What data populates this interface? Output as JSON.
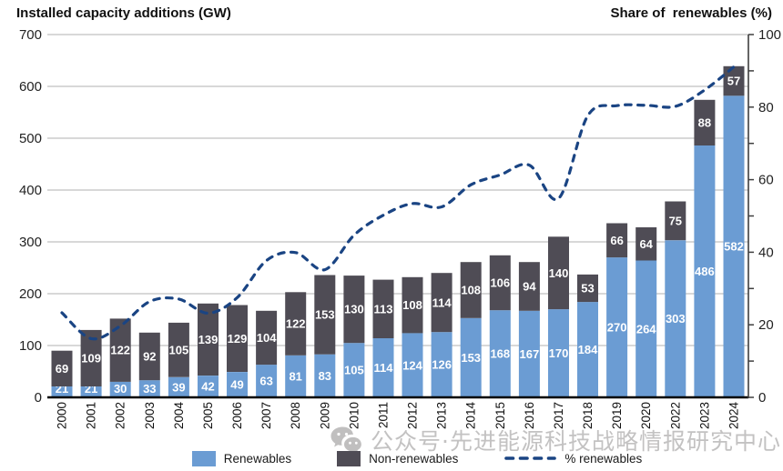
{
  "chart_data": {
    "type": "bar",
    "stacked": true,
    "title": "",
    "categories": [
      "2000",
      "2001",
      "2002",
      "2003",
      "2004",
      "2005",
      "2006",
      "2007",
      "2008",
      "2009",
      "2010",
      "2011",
      "2012",
      "2013",
      "2014",
      "2015",
      "2016",
      "2017",
      "2018",
      "2019",
      "2020",
      "2022",
      "2023",
      "2024"
    ],
    "series": [
      {
        "name": "Renewables",
        "color": "#6b9cd3",
        "values": [
          21,
          21,
          30,
          33,
          39,
          42,
          49,
          63,
          81,
          83,
          105,
          114,
          124,
          126,
          153,
          168,
          167,
          170,
          184,
          270,
          264,
          303,
          486,
          582
        ]
      },
      {
        "name": "Non-renewables",
        "color": "#4f4c55",
        "values": [
          69,
          109,
          122,
          92,
          105,
          139,
          129,
          104,
          122,
          153,
          130,
          113,
          108,
          114,
          108,
          106,
          94,
          140,
          53,
          66,
          64,
          75,
          88,
          57
        ]
      }
    ],
    "line_series": {
      "name": "% renewables",
      "axis": "right",
      "style": "dashed",
      "color": "#1a4483",
      "values": [
        23.3,
        16.2,
        19.7,
        26.4,
        27.1,
        23.2,
        27.5,
        37.7,
        39.9,
        35.2,
        44.7,
        50.2,
        53.4,
        52.5,
        58.6,
        61.3,
        64.0,
        54.8,
        77.6,
        80.4,
        80.5,
        80.2,
        84.7,
        91.1
      ]
    },
    "left_axis": {
      "title": "Installed capacity additions (GW)",
      "range": [
        0,
        700
      ],
      "ticks": [
        0,
        100,
        200,
        300,
        400,
        500,
        600,
        700
      ]
    },
    "right_axis": {
      "title": "Share of  renewables (%)",
      "range": [
        0,
        100
      ],
      "ticks": [
        0,
        20,
        40,
        60,
        80,
        100
      ],
      "minor_step": 10
    },
    "grid": true,
    "legend_position": "bottom",
    "bar_label_color": "#ffffff",
    "colors": {
      "grid": "#cbcbcb",
      "axis": "#3f3f3f",
      "baseline": "#000000",
      "tick_label": "#222222",
      "year_label": "#111111"
    }
  },
  "legend": {
    "items": [
      {
        "label": "Renewables",
        "swatch": "renewables"
      },
      {
        "label": "Non-renewables",
        "swatch": "non_renewables"
      },
      {
        "label": "% renewables",
        "swatch": "dashed_line"
      }
    ]
  },
  "watermark": {
    "text": "公众号·先进能源科技战略情报研究中心",
    "icon": "wechat-icon",
    "color": "#c3c2c2"
  }
}
